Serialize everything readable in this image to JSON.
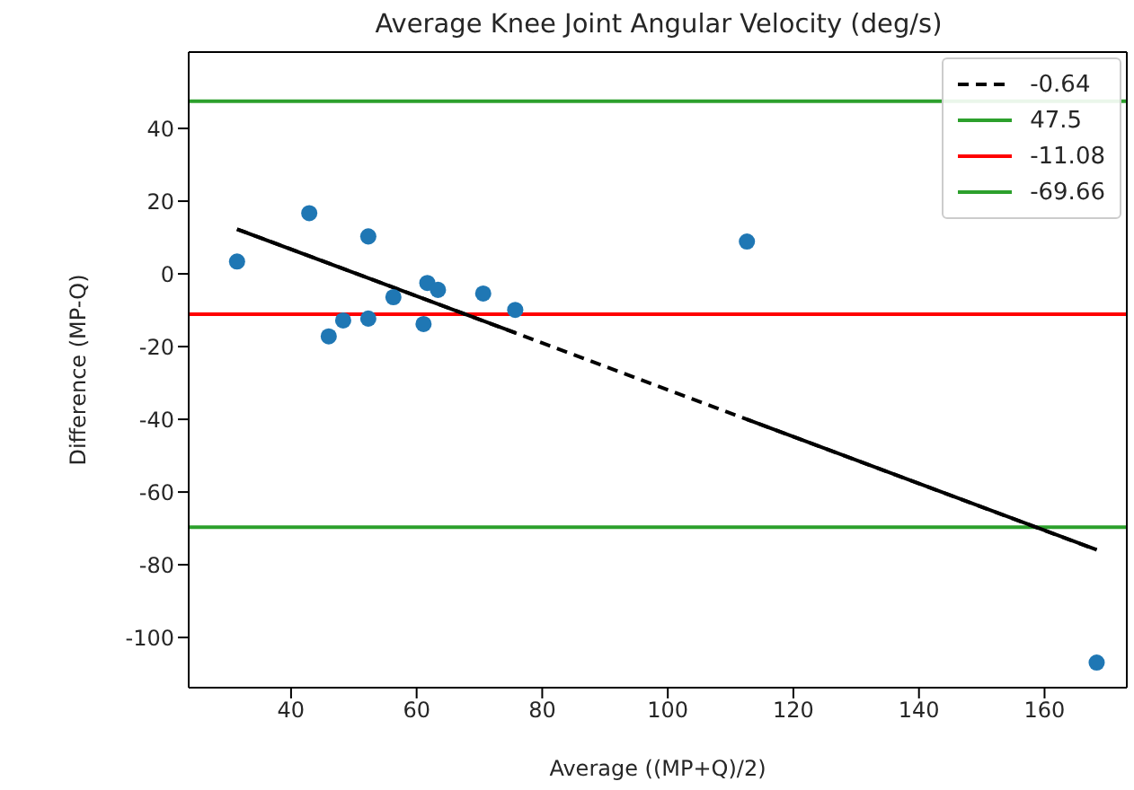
{
  "chart_data": {
    "type": "scatter",
    "title": "Average Knee Joint Angular Velocity (deg/s)",
    "xlabel": "Average ((MP+Q)/2)",
    "ylabel": "Difference (MP-Q)",
    "x": [
      31.4,
      42.9,
      52.3,
      46,
      48.3,
      52.3,
      56.3,
      61.1,
      61.7,
      63.4,
      70.6,
      75.7,
      112.6,
      168.3
    ],
    "series": [
      {
        "marker": "circle",
        "color": "#1f77b4",
        "values": [
          3.4,
          16.7,
          10.3,
          -17.2,
          -12.8,
          -12.3,
          -6.4,
          -13.8,
          -2.5,
          -4.4,
          -5.4,
          -9.9,
          8.9,
          -106.9
        ]
      },
      {
        "type": "line",
        "name": "-0.64",
        "color": "#000000",
        "line_style": "dashed",
        "x": [
          31.4,
          168.3
        ],
        "values": [
          12.3,
          -75.9
        ]
      },
      {
        "type": "line",
        "color": "#000000",
        "line_style": "solid",
        "x": [
          31.4,
          75.7,
          94,
          112.6,
          168.3
        ],
        "values": [
          12.3,
          -16.2,
          null,
          -40.0,
          -75.9
        ]
      }
    ],
    "ref_lines": [
      {
        "axis": "y",
        "value": 47.5,
        "label": "47.5",
        "color": "#2ca02c"
      },
      {
        "axis": "y",
        "value": -11.08,
        "label": "-11.08",
        "color": "#ff0000"
      },
      {
        "axis": "y",
        "value": -69.66,
        "label": "-69.66",
        "color": "#2ca02c"
      }
    ],
    "xlim": [
      23.7,
      173.1
    ],
    "xticks": [
      40,
      60,
      80,
      100,
      120,
      140,
      160
    ],
    "ylim": [
      -113.8,
      61
    ],
    "yticks": [
      -100,
      -80,
      -60,
      -40,
      -20,
      0,
      20,
      40
    ],
    "marker": "none",
    "grid": false,
    "legend": "top right"
  }
}
